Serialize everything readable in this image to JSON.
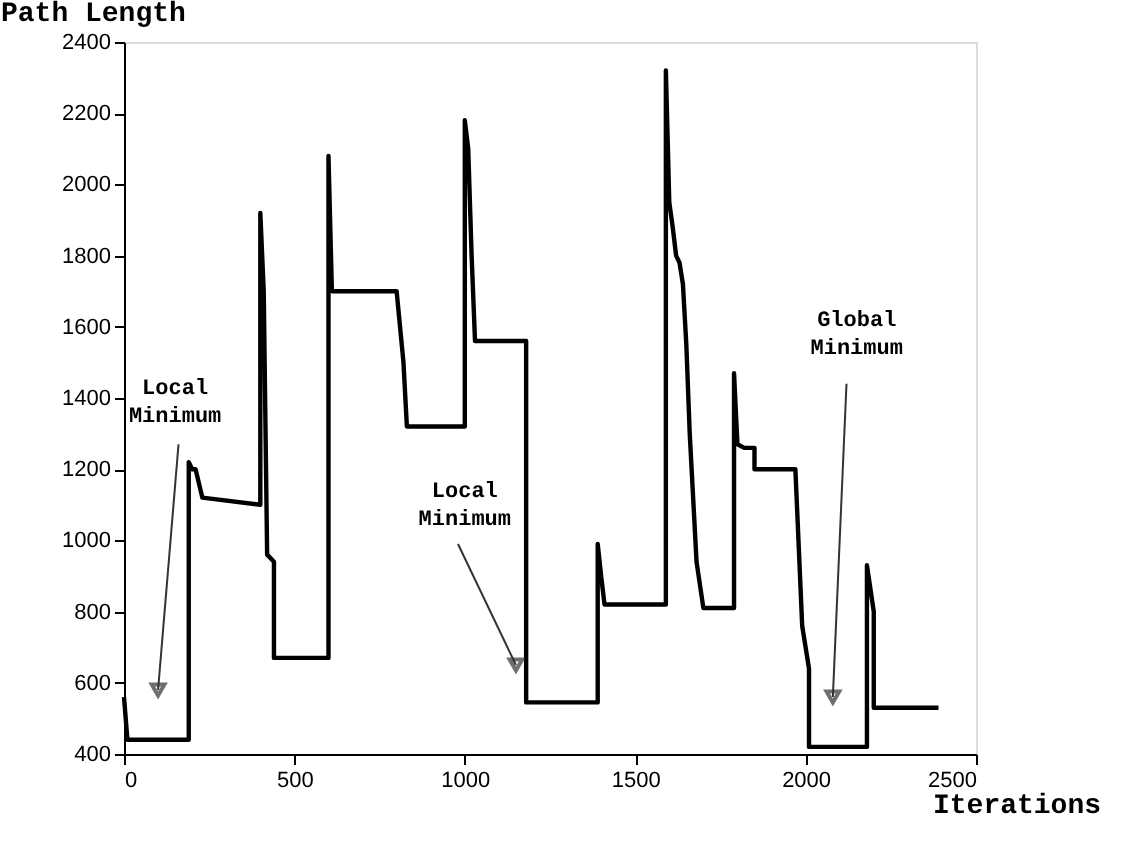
{
  "chart_data": {
    "type": "line",
    "xlabel": "Iterations",
    "ylabel": "Path Length",
    "xlim": [
      0,
      2500
    ],
    "xticks": [
      0,
      500,
      1000,
      1500,
      2000,
      2500
    ],
    "ylim": [
      400,
      2400
    ],
    "yticks": [
      400,
      600,
      800,
      1000,
      1200,
      1400,
      1600,
      1800,
      2000,
      2200,
      2400
    ],
    "grid": false,
    "marker": "none",
    "line_style": "solid",
    "series": [
      {
        "color": "#000000",
        "x": [
          0,
          10,
          190,
          190,
          200,
          210,
          230,
          400,
          400,
          410,
          420,
          440,
          440,
          600,
          600,
          610,
          800,
          820,
          830,
          1000,
          1000,
          1010,
          1020,
          1030,
          1180,
          1180,
          1390,
          1390,
          1400,
          1410,
          1590,
          1590,
          1600,
          1610,
          1620,
          1630,
          1640,
          1650,
          1660,
          1680,
          1700,
          1790,
          1790,
          1800,
          1820,
          1850,
          1850,
          1970,
          1990,
          2010,
          2010,
          2180,
          2180,
          2200,
          2200,
          2390
        ],
        "values": [
          560,
          440,
          440,
          1220,
          1200,
          1200,
          1120,
          1100,
          1920,
          1700,
          960,
          940,
          670,
          670,
          2080,
          1700,
          1700,
          1500,
          1320,
          1320,
          2180,
          2100,
          1800,
          1560,
          1560,
          545,
          545,
          990,
          900,
          820,
          820,
          2320,
          1950,
          1880,
          1800,
          1780,
          1720,
          1550,
          1300,
          940,
          810,
          810,
          1470,
          1270,
          1260,
          1260,
          1200,
          1200,
          760,
          640,
          420,
          420,
          930,
          800,
          530,
          530
        ]
      }
    ],
    "annotations": [
      {
        "text": "Local Minimum",
        "x": 100,
        "y": 580
      },
      {
        "text": "Local Minimum",
        "x": 1150,
        "y": 650
      },
      {
        "text": "Global Minimum",
        "x": 2080,
        "y": 560
      }
    ]
  }
}
